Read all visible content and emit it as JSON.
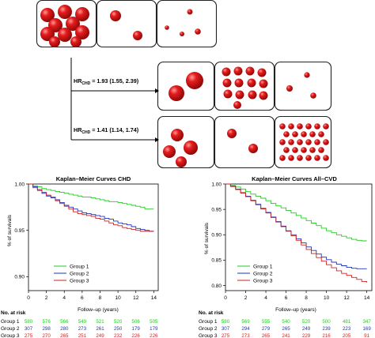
{
  "diagram": {
    "hr_top_prefix": "HR",
    "hr_top_sub": "CHD",
    "hr_top_value": " = 1.93 (1.55, 2.39)",
    "hr_bottom_prefix": "HR",
    "hr_bottom_sub": "CHD",
    "hr_bottom_value": " = 1.41 (1.14, 1.74)",
    "colors": {
      "sphere": "#d81414",
      "box_border": "#222222"
    }
  },
  "chart_data": [
    {
      "type": "line",
      "title": "Kaplan–Meier Curves CHD",
      "xlabel": "Follow–up (years)",
      "ylabel": "% of survivals",
      "xlim": [
        0,
        14.5
      ],
      "ylim": [
        0.885,
        1.0
      ],
      "xticks": [
        0,
        2,
        4,
        6,
        8,
        10,
        12,
        14
      ],
      "yticks": [
        0.9,
        0.95,
        1.0
      ],
      "ytick_labels": [
        "0.90",
        "0.95",
        "1.00"
      ],
      "legend_position": "bottom-left",
      "series": [
        {
          "name": "Group 1",
          "color": "#22cc22",
          "x": [
            0,
            0.5,
            1,
            1.5,
            2,
            2.5,
            3,
            3.5,
            4,
            4.5,
            5,
            5.5,
            6,
            6.5,
            7,
            7.5,
            8,
            8.5,
            9,
            9.5,
            10,
            10.5,
            11,
            11.5,
            12,
            12.5,
            13,
            13.5,
            14
          ],
          "y": [
            1.0,
            0.998,
            0.997,
            0.995,
            0.994,
            0.993,
            0.992,
            0.991,
            0.99,
            0.989,
            0.988,
            0.987,
            0.986,
            0.986,
            0.985,
            0.984,
            0.983,
            0.982,
            0.981,
            0.981,
            0.98,
            0.979,
            0.978,
            0.977,
            0.976,
            0.975,
            0.973,
            0.973,
            0.973
          ]
        },
        {
          "name": "Group 2",
          "color": "#2233bb",
          "x": [
            0,
            0.5,
            1,
            1.5,
            2,
            2.5,
            3,
            3.5,
            4,
            4.5,
            5,
            5.5,
            6,
            6.5,
            7,
            7.5,
            8,
            8.5,
            9,
            9.5,
            10,
            10.5,
            11,
            11.5,
            12,
            12.5,
            13,
            13.5,
            14
          ],
          "y": [
            1.0,
            0.997,
            0.993,
            0.99,
            0.987,
            0.985,
            0.983,
            0.98,
            0.977,
            0.975,
            0.973,
            0.971,
            0.969,
            0.968,
            0.967,
            0.966,
            0.965,
            0.963,
            0.962,
            0.96,
            0.958,
            0.957,
            0.956,
            0.954,
            0.952,
            0.951,
            0.95,
            0.949,
            0.949
          ]
        },
        {
          "name": "Group 3",
          "color": "#cc2222",
          "x": [
            0,
            0.5,
            1,
            1.5,
            2,
            2.5,
            3,
            3.5,
            4,
            4.5,
            5,
            5.5,
            6,
            6.5,
            7,
            7.5,
            8,
            8.5,
            9,
            9.5,
            10,
            10.5,
            11,
            11.5,
            12,
            12.5,
            13,
            13.5,
            14
          ],
          "y": [
            1.0,
            0.996,
            0.994,
            0.991,
            0.988,
            0.986,
            0.982,
            0.979,
            0.976,
            0.973,
            0.97,
            0.968,
            0.967,
            0.966,
            0.965,
            0.963,
            0.962,
            0.96,
            0.958,
            0.956,
            0.955,
            0.953,
            0.952,
            0.951,
            0.95,
            0.949,
            0.949,
            0.949,
            0.949
          ]
        }
      ],
      "risk_table": {
        "title": "No. at risk",
        "rows": [
          {
            "label": "Group 1",
            "color": "#22cc22",
            "values": [
              "580",
              "576",
              "566",
              "549",
              "521",
              "520",
              "506",
              "505"
            ]
          },
          {
            "label": "Group 2",
            "color": "#2233bb",
            "values": [
              "307",
              "298",
              "280",
              "273",
              "261",
              "250",
              "179",
              "179"
            ]
          },
          {
            "label": "Group 3",
            "color": "#cc2222",
            "values": [
              "275",
              "270",
              "265",
              "251",
              "249",
              "232",
              "226",
              "226"
            ]
          }
        ]
      }
    },
    {
      "type": "line",
      "title": "Kaplan–Meier Curves All–CVD",
      "xlabel": "Follow–up (years)",
      "ylabel": "% of survivals",
      "xlim": [
        0,
        14.5
      ],
      "ylim": [
        0.79,
        1.0
      ],
      "xticks": [
        0,
        2,
        4,
        6,
        8,
        10,
        12,
        14
      ],
      "yticks": [
        0.8,
        0.85,
        0.9,
        0.95,
        1.0
      ],
      "ytick_labels": [
        "0.80",
        "0.85",
        "0.90",
        "0.95",
        "1.00"
      ],
      "legend_position": "bottom-left",
      "series": [
        {
          "name": "Group 1",
          "color": "#22cc22",
          "x": [
            0,
            0.5,
            1,
            1.5,
            2,
            2.5,
            3,
            3.5,
            4,
            4.5,
            5,
            5.5,
            6,
            6.5,
            7,
            7.5,
            8,
            8.5,
            9,
            9.5,
            10,
            10.5,
            11,
            11.5,
            12,
            12.5,
            13,
            13.5,
            14
          ],
          "y": [
            1.0,
            0.997,
            0.994,
            0.99,
            0.985,
            0.98,
            0.976,
            0.972,
            0.967,
            0.962,
            0.957,
            0.953,
            0.948,
            0.943,
            0.938,
            0.933,
            0.928,
            0.923,
            0.918,
            0.913,
            0.908,
            0.904,
            0.9,
            0.897,
            0.894,
            0.891,
            0.889,
            0.888,
            0.888
          ]
        },
        {
          "name": "Group 2",
          "color": "#2233bb",
          "x": [
            0,
            0.5,
            1,
            1.5,
            2,
            2.5,
            3,
            3.5,
            4,
            4.5,
            5,
            5.5,
            6,
            6.5,
            7,
            7.5,
            8,
            8.5,
            9,
            9.5,
            10,
            10.5,
            11,
            11.5,
            12,
            12.5,
            13,
            13.5,
            14
          ],
          "y": [
            1.0,
            0.996,
            0.99,
            0.983,
            0.976,
            0.968,
            0.96,
            0.952,
            0.944,
            0.935,
            0.926,
            0.917,
            0.908,
            0.9,
            0.892,
            0.884,
            0.876,
            0.869,
            0.862,
            0.856,
            0.851,
            0.846,
            0.842,
            0.839,
            0.836,
            0.834,
            0.833,
            0.833,
            0.833
          ]
        },
        {
          "name": "Group 3",
          "color": "#cc2222",
          "x": [
            0,
            0.5,
            1,
            1.5,
            2,
            2.5,
            3,
            3.5,
            4,
            4.5,
            5,
            5.5,
            6,
            6.5,
            7,
            7.5,
            8,
            8.5,
            9,
            9.5,
            10,
            10.5,
            11,
            11.5,
            12,
            12.5,
            13,
            13.5,
            14
          ],
          "y": [
            1.0,
            0.995,
            0.989,
            0.982,
            0.975,
            0.967,
            0.959,
            0.951,
            0.943,
            0.934,
            0.925,
            0.916,
            0.907,
            0.898,
            0.889,
            0.88,
            0.871,
            0.863,
            0.855,
            0.848,
            0.841,
            0.835,
            0.829,
            0.824,
            0.82,
            0.816,
            0.812,
            0.808,
            0.806
          ]
        }
      ],
      "risk_table": {
        "title": "No. at risk",
        "rows": [
          {
            "label": "Group 1",
            "color": "#22cc22",
            "values": [
              "580",
              "569",
              "555",
              "540",
              "520",
              "500",
              "481",
              "347"
            ]
          },
          {
            "label": "Group 2",
            "color": "#2233bb",
            "values": [
              "307",
              "294",
              "279",
              "265",
              "249",
              "239",
              "223",
              "169"
            ]
          },
          {
            "label": "Group 3",
            "color": "#cc2222",
            "values": [
              "275",
              "273",
              "265",
              "241",
              "229",
              "216",
              "205",
              "91"
            ]
          }
        ]
      }
    }
  ]
}
